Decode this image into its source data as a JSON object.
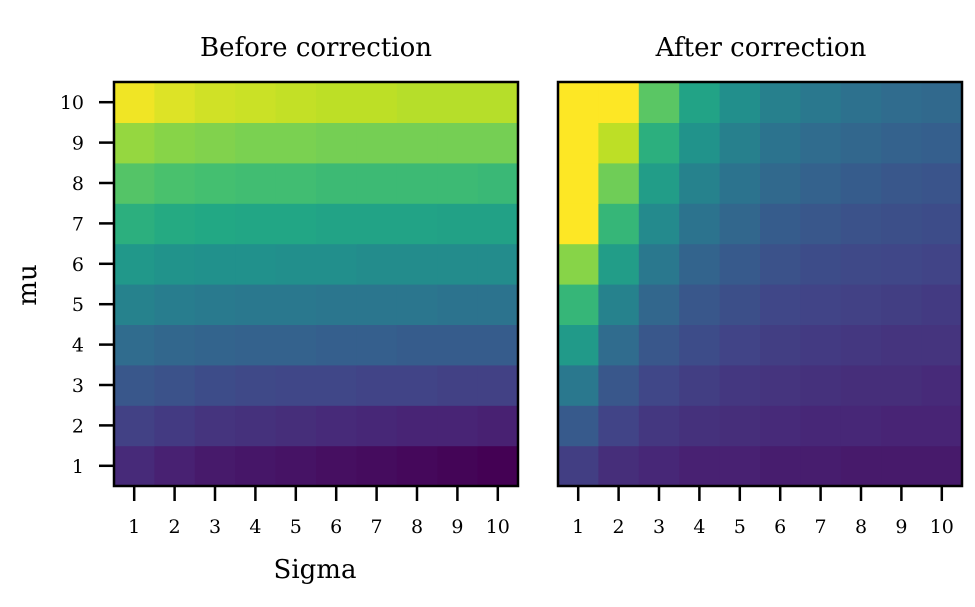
{
  "chart_data": [
    {
      "type": "heatmap",
      "title": "Before correction",
      "xlabel": "Sigma",
      "ylabel": "mu",
      "x_ticks": [
        "1",
        "2",
        "3",
        "4",
        "5",
        "6",
        "7",
        "8",
        "9",
        "10"
      ],
      "y_ticks": [
        "1",
        "2",
        "3",
        "4",
        "5",
        "6",
        "7",
        "8",
        "9",
        "10"
      ],
      "colormap": "viridis",
      "value_range": [
        0,
        1
      ],
      "rows": [
        [
          0.12,
          0.09,
          0.07,
          0.06,
          0.05,
          0.04,
          0.03,
          0.02,
          0.01,
          0.0
        ],
        [
          0.19,
          0.17,
          0.15,
          0.14,
          0.13,
          0.12,
          0.11,
          0.1,
          0.1,
          0.09
        ],
        [
          0.27,
          0.25,
          0.23,
          0.22,
          0.21,
          0.21,
          0.2,
          0.2,
          0.19,
          0.19
        ],
        [
          0.35,
          0.33,
          0.32,
          0.31,
          0.31,
          0.3,
          0.3,
          0.29,
          0.29,
          0.29
        ],
        [
          0.44,
          0.42,
          0.41,
          0.4,
          0.4,
          0.39,
          0.39,
          0.39,
          0.38,
          0.38
        ],
        [
          0.53,
          0.51,
          0.5,
          0.5,
          0.49,
          0.49,
          0.48,
          0.48,
          0.48,
          0.48
        ],
        [
          0.63,
          0.61,
          0.6,
          0.59,
          0.59,
          0.58,
          0.58,
          0.58,
          0.57,
          0.57
        ],
        [
          0.73,
          0.71,
          0.7,
          0.69,
          0.69,
          0.68,
          0.68,
          0.68,
          0.68,
          0.67
        ],
        [
          0.84,
          0.82,
          0.81,
          0.8,
          0.8,
          0.79,
          0.79,
          0.79,
          0.79,
          0.79
        ],
        [
          0.98,
          0.95,
          0.93,
          0.92,
          0.91,
          0.9,
          0.9,
          0.89,
          0.89,
          0.89
        ]
      ]
    },
    {
      "type": "heatmap",
      "title": "After correction",
      "xlabel": "",
      "ylabel": "",
      "x_ticks": [
        "1",
        "2",
        "3",
        "4",
        "5",
        "6",
        "7",
        "8",
        "9",
        "10"
      ],
      "y_ticks": [],
      "colormap": "viridis",
      "value_range": [
        0,
        1
      ],
      "rows": [
        [
          0.18,
          0.13,
          0.11,
          0.09,
          0.09,
          0.08,
          0.08,
          0.07,
          0.07,
          0.07
        ],
        [
          0.28,
          0.2,
          0.16,
          0.14,
          0.13,
          0.12,
          0.11,
          0.11,
          0.1,
          0.1
        ],
        [
          0.4,
          0.27,
          0.21,
          0.18,
          0.16,
          0.15,
          0.14,
          0.13,
          0.13,
          0.12
        ],
        [
          0.54,
          0.35,
          0.27,
          0.23,
          0.2,
          0.18,
          0.17,
          0.16,
          0.15,
          0.15
        ],
        [
          0.66,
          0.44,
          0.33,
          0.27,
          0.24,
          0.21,
          0.2,
          0.19,
          0.18,
          0.17
        ],
        [
          0.82,
          0.55,
          0.4,
          0.32,
          0.28,
          0.25,
          0.23,
          0.22,
          0.21,
          0.2
        ],
        [
          1.0,
          0.66,
          0.47,
          0.38,
          0.33,
          0.29,
          0.27,
          0.25,
          0.24,
          0.23
        ],
        [
          1.0,
          0.78,
          0.55,
          0.44,
          0.38,
          0.34,
          0.31,
          0.29,
          0.27,
          0.26
        ],
        [
          1.0,
          0.9,
          0.63,
          0.51,
          0.43,
          0.38,
          0.35,
          0.33,
          0.31,
          0.3
        ],
        [
          1.0,
          1.0,
          0.74,
          0.58,
          0.49,
          0.43,
          0.4,
          0.37,
          0.35,
          0.34
        ]
      ]
    }
  ]
}
